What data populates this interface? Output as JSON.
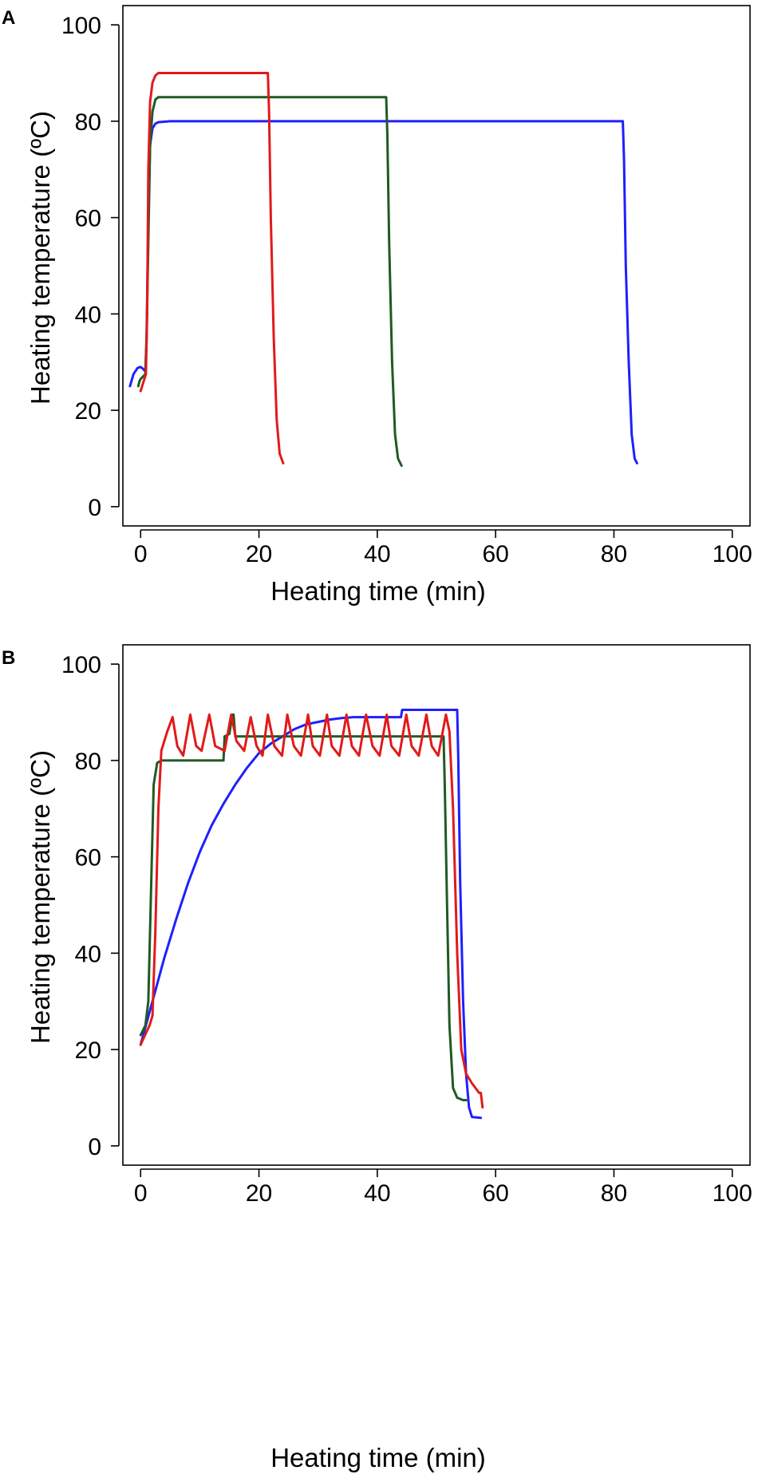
{
  "chart_data": [
    {
      "panel": "A",
      "type": "line",
      "xlabel": "Heating time (min)",
      "ylabel": "Heating temperature (ºC)",
      "xlim": [
        -3,
        103
      ],
      "ylim": [
        -4,
        104
      ],
      "xticks": [
        0,
        20,
        40,
        60,
        80,
        100
      ],
      "yticks": [
        0,
        20,
        40,
        60,
        80,
        100
      ],
      "series": [
        {
          "name": "blue",
          "color": "#1f1fff",
          "x": [
            -1.8,
            -1.2,
            -0.5,
            0,
            0.5,
            0.8,
            1,
            1.3,
            1.6,
            2,
            2.5,
            3,
            5,
            20,
            40,
            60,
            70,
            81.5,
            81.7,
            82,
            82.5,
            83,
            83.5,
            83.9
          ],
          "y": [
            25,
            27.5,
            28.8,
            29,
            28.5,
            28,
            35,
            60,
            75,
            78.5,
            79.5,
            79.8,
            80,
            80,
            80,
            80,
            80,
            80,
            72,
            50,
            30,
            15,
            10,
            9
          ]
        },
        {
          "name": "green",
          "color": "#1f5a22",
          "x": [
            -0.4,
            -0.2,
            0,
            0.4,
            0.8,
            1,
            1.3,
            1.6,
            2,
            2.5,
            3,
            5,
            20,
            30,
            41.5,
            41.7,
            42,
            42.5,
            43,
            43.5,
            44.1
          ],
          "y": [
            25,
            26,
            26.5,
            27,
            27.5,
            35,
            55,
            75,
            82,
            84.5,
            85,
            85,
            85,
            85,
            85,
            77,
            55,
            30,
            15,
            10,
            8.5
          ]
        },
        {
          "name": "red",
          "color": "#e11a1a",
          "x": [
            0,
            0.5,
            0.9,
            1.1,
            1.3,
            1.6,
            2,
            2.5,
            3,
            5,
            10,
            21.5,
            21.7,
            22,
            22.5,
            23,
            23.5,
            24.1
          ],
          "y": [
            24,
            26,
            27.5,
            40,
            70,
            84,
            88,
            89.5,
            90,
            90,
            90,
            90,
            82,
            60,
            35,
            18,
            11,
            9
          ]
        }
      ]
    },
    {
      "panel": "B",
      "type": "line",
      "xlabel": "Heating time (min)",
      "ylabel": "Heating temperature (ºC)",
      "xlim": [
        -3,
        103
      ],
      "ylim": [
        -4,
        104
      ],
      "xticks": [
        0,
        20,
        40,
        60,
        80,
        100
      ],
      "yticks": [
        0,
        20,
        40,
        60,
        80,
        100
      ],
      "series": [
        {
          "name": "blue",
          "color": "#1f1fff",
          "x": [
            0,
            2,
            4,
            6,
            8,
            10,
            12,
            14,
            16,
            18,
            20,
            22,
            24,
            26,
            28,
            30,
            32,
            34,
            36,
            44,
            44.2,
            53.5,
            53.7,
            54,
            54.5,
            55,
            55.5,
            56,
            57.5
          ],
          "y": [
            21,
            30,
            39,
            47,
            54.5,
            61,
            66.5,
            71,
            75,
            78.5,
            81.5,
            83.5,
            85,
            86.5,
            87.5,
            88,
            88.5,
            88.8,
            89,
            89,
            90.5,
            90.5,
            80,
            55,
            30,
            15,
            8,
            6,
            5.8
          ]
        },
        {
          "name": "green",
          "color": "#1f5a22",
          "x": [
            0,
            0.8,
            1.3,
            1.8,
            2.2,
            2.8,
            3.5,
            14,
            14.2,
            15,
            15.5,
            15.7,
            16,
            51.2,
            51.4,
            51.8,
            52.2,
            52.8,
            53.5,
            54.5,
            55
          ],
          "y": [
            23,
            25,
            30,
            55,
            75,
            79.5,
            80,
            80,
            85,
            85.5,
            89.5,
            89.5,
            85,
            85,
            75,
            50,
            25,
            12,
            10,
            9.5,
            9.5
          ]
        },
        {
          "name": "red",
          "color": "#e11a1a",
          "x": [
            0,
            1.5,
            2,
            2.5,
            3,
            3.5,
            4,
            4.5,
            5.4,
            6.2,
            7.2,
            8.4,
            9.4,
            10.3,
            11.6,
            12.6,
            14.2,
            15.3,
            16.2,
            17.5,
            18.6,
            19.6,
            20.6,
            21.5,
            22.6,
            23.9,
            24.8,
            25.9,
            27.1,
            28.3,
            29.1,
            30.3,
            31.5,
            32.3,
            33.6,
            34.8,
            35.7,
            36.9,
            38.1,
            39.2,
            40.4,
            41.6,
            42.4,
            43.7,
            44.9,
            45.8,
            47.0,
            48.3,
            49.2,
            50.3,
            51.6,
            52.2,
            52.8,
            53.5,
            54.2,
            55,
            56,
            57.2,
            57.5,
            57.8
          ],
          "y": [
            21,
            25,
            27,
            45,
            70,
            82,
            84,
            86,
            89,
            83,
            81,
            89.5,
            83,
            82,
            89.5,
            83,
            82,
            89.5,
            84,
            82,
            89,
            83,
            81,
            89.5,
            83,
            81,
            89.5,
            83,
            81,
            89.5,
            83,
            81,
            89.5,
            83,
            81,
            89.5,
            83,
            81,
            89.5,
            83,
            81,
            89.5,
            83,
            81,
            89.5,
            83,
            81,
            89.5,
            83,
            81,
            89.5,
            86,
            70,
            40,
            20,
            15,
            13,
            11,
            11,
            8
          ]
        }
      ]
    }
  ]
}
